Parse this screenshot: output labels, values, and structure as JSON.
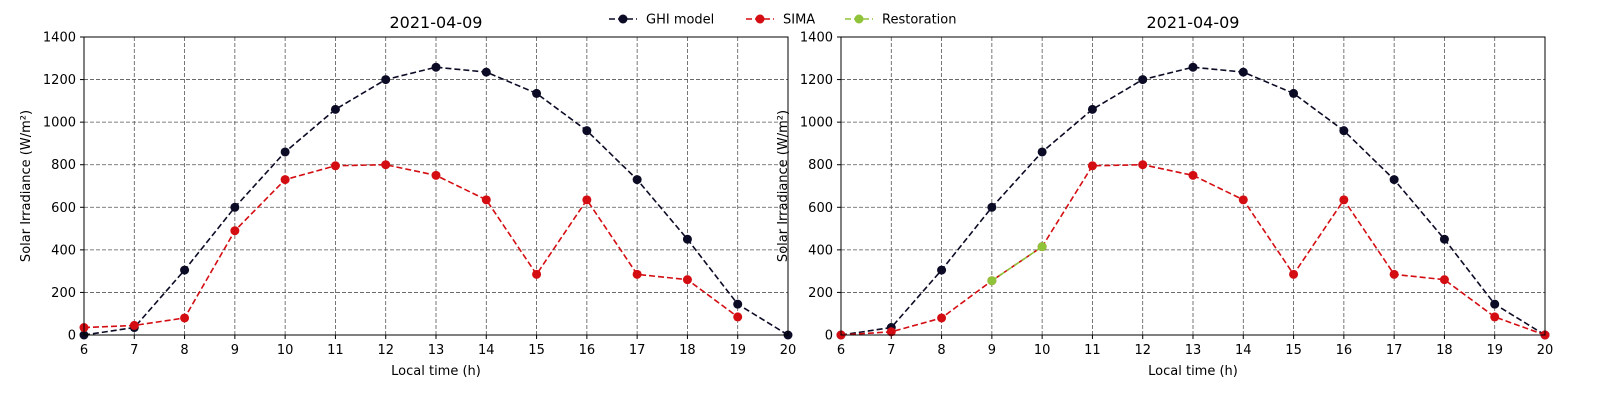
{
  "legend": [
    {
      "name": "GHI model",
      "color": "#0b0b26"
    },
    {
      "name": "SIMA",
      "color": "#d40d12"
    },
    {
      "name": "Restoration",
      "color": "#8fc33a"
    }
  ],
  "chart_data": [
    {
      "type": "line",
      "title": "2021-04-09",
      "xlabel": "Local time (h)",
      "ylabel": "Solar Irradiance (W/m²)",
      "xlim": [
        6,
        20
      ],
      "ylim": [
        0,
        1400
      ],
      "xticks": [
        6,
        7,
        8,
        9,
        10,
        11,
        12,
        13,
        14,
        15,
        16,
        17,
        18,
        19,
        20
      ],
      "yticks": [
        0,
        200,
        400,
        600,
        800,
        1000,
        1200,
        1400
      ],
      "grid": true,
      "series": [
        {
          "name": "GHI model",
          "color": "#0b0b26",
          "x": [
            6,
            7,
            8,
            9,
            10,
            11,
            12,
            13,
            14,
            15,
            16,
            17,
            18,
            19,
            20
          ],
          "y": [
            0,
            35,
            305,
            600,
            860,
            1060,
            1200,
            1258,
            1235,
            1135,
            960,
            730,
            450,
            145,
            0
          ]
        },
        {
          "name": "SIMA",
          "color": "#d40d12",
          "x": [
            6,
            7,
            8,
            9,
            10,
            11,
            12,
            13,
            14,
            15,
            16,
            17,
            18,
            19
          ],
          "y": [
            35,
            45,
            80,
            490,
            730,
            795,
            800,
            750,
            635,
            285,
            635,
            285,
            260,
            85
          ]
        }
      ]
    },
    {
      "type": "line",
      "title": "2021-04-09",
      "xlabel": "Local time (h)",
      "ylabel": "Solar Irradiance (W/m²)",
      "xlim": [
        6,
        20
      ],
      "ylim": [
        0,
        1400
      ],
      "xticks": [
        6,
        7,
        8,
        9,
        10,
        11,
        12,
        13,
        14,
        15,
        16,
        17,
        18,
        19,
        20
      ],
      "yticks": [
        0,
        200,
        400,
        600,
        800,
        1000,
        1200,
        1400
      ],
      "grid": true,
      "series": [
        {
          "name": "GHI model",
          "color": "#0b0b26",
          "x": [
            6,
            7,
            8,
            9,
            10,
            11,
            12,
            13,
            14,
            15,
            16,
            17,
            18,
            19,
            20
          ],
          "y": [
            0,
            35,
            305,
            600,
            860,
            1060,
            1200,
            1258,
            1235,
            1135,
            960,
            730,
            450,
            145,
            0
          ]
        },
        {
          "name": "SIMA",
          "color": "#d40d12",
          "x": [
            6,
            7,
            8,
            9,
            10,
            11,
            12,
            13,
            14,
            15,
            16,
            17,
            18,
            19,
            20
          ],
          "y": [
            0,
            15,
            80,
            255,
            415,
            795,
            800,
            750,
            635,
            285,
            635,
            285,
            260,
            85,
            0
          ]
        },
        {
          "name": "Restoration",
          "color": "#8fc33a",
          "x": [
            9,
            10
          ],
          "y": [
            255,
            415
          ]
        }
      ]
    }
  ]
}
